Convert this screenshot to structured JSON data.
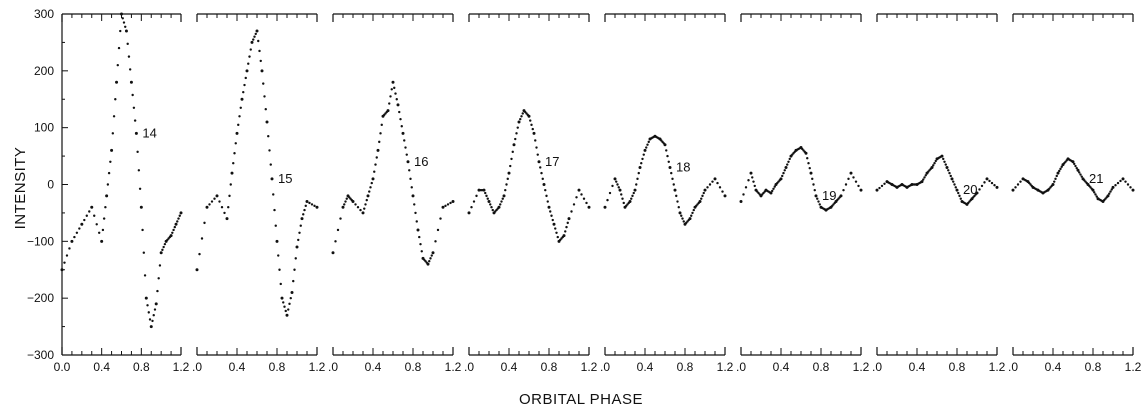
{
  "chart_data": {
    "type": "scatter",
    "xlabel": "ORBITAL PHASE",
    "ylabel": "INTENSITY",
    "ylim": [
      -300,
      300
    ],
    "xlim": [
      0.0,
      1.2
    ],
    "y_ticks": [
      "300",
      "200",
      "100",
      "0",
      "−100",
      "−200",
      "−300"
    ],
    "x_tick_labels_first": [
      "0.0",
      "0.4",
      "0.8",
      "1.2"
    ],
    "x_tick_labels_other": [
      ".0",
      "0.4",
      "0.8",
      "1.2"
    ],
    "grid": false,
    "panels": [
      {
        "name": "14",
        "x": [
          0.0,
          0.1,
          0.2,
          0.3,
          0.4,
          0.45,
          0.5,
          0.55,
          0.6,
          0.65,
          0.7,
          0.75,
          0.8,
          0.85,
          0.9,
          0.95,
          1.0,
          1.05,
          1.1,
          1.15,
          1.2
        ],
        "y": [
          -150,
          -100,
          -70,
          -40,
          -100,
          -20,
          60,
          180,
          300,
          270,
          180,
          90,
          -40,
          -200,
          -250,
          -210,
          -120,
          -100,
          -90,
          -70,
          -50
        ]
      },
      {
        "name": "15",
        "x": [
          0.0,
          0.1,
          0.2,
          0.3,
          0.35,
          0.4,
          0.45,
          0.5,
          0.55,
          0.6,
          0.65,
          0.7,
          0.75,
          0.8,
          0.85,
          0.9,
          0.95,
          1.0,
          1.05,
          1.1,
          1.2
        ],
        "y": [
          -150,
          -40,
          -20,
          -60,
          20,
          90,
          150,
          200,
          250,
          270,
          200,
          110,
          10,
          -100,
          -200,
          -230,
          -190,
          -110,
          -60,
          -30,
          -40
        ]
      },
      {
        "name": "16",
        "x": [
          0.0,
          0.1,
          0.15,
          0.2,
          0.3,
          0.35,
          0.4,
          0.45,
          0.5,
          0.55,
          0.6,
          0.65,
          0.7,
          0.75,
          0.8,
          0.85,
          0.9,
          0.95,
          1.0,
          1.1,
          1.2
        ],
        "y": [
          -120,
          -40,
          -20,
          -30,
          -50,
          -20,
          10,
          60,
          120,
          130,
          180,
          140,
          90,
          40,
          -20,
          -80,
          -130,
          -140,
          -120,
          -40,
          -30
        ]
      },
      {
        "name": "17",
        "x": [
          0.0,
          0.1,
          0.15,
          0.2,
          0.25,
          0.3,
          0.35,
          0.4,
          0.45,
          0.5,
          0.55,
          0.6,
          0.65,
          0.7,
          0.75,
          0.8,
          0.85,
          0.9,
          0.95,
          1.0,
          1.1,
          1.2
        ],
        "y": [
          -50,
          -10,
          -10,
          -30,
          -50,
          -40,
          -20,
          20,
          70,
          110,
          130,
          120,
          90,
          40,
          0,
          -40,
          -70,
          -100,
          -90,
          -60,
          -10,
          -40
        ]
      },
      {
        "name": "18",
        "x": [
          0.0,
          0.1,
          0.15,
          0.2,
          0.25,
          0.3,
          0.35,
          0.4,
          0.45,
          0.5,
          0.55,
          0.6,
          0.65,
          0.7,
          0.75,
          0.8,
          0.85,
          0.9,
          0.95,
          1.0,
          1.1,
          1.2
        ],
        "y": [
          -40,
          10,
          -10,
          -40,
          -30,
          -10,
          30,
          60,
          80,
          85,
          80,
          70,
          30,
          -10,
          -50,
          -70,
          -60,
          -40,
          -30,
          -10,
          10,
          -20
        ]
      },
      {
        "name": "19",
        "x": [
          0.0,
          0.1,
          0.15,
          0.2,
          0.25,
          0.3,
          0.35,
          0.4,
          0.45,
          0.5,
          0.55,
          0.6,
          0.65,
          0.7,
          0.75,
          0.8,
          0.85,
          0.9,
          0.95,
          1.0,
          1.1,
          1.2
        ],
        "y": [
          -30,
          20,
          -10,
          -20,
          -10,
          -15,
          0,
          10,
          30,
          50,
          60,
          65,
          55,
          20,
          -20,
          -40,
          -45,
          -40,
          -30,
          -20,
          20,
          -10
        ]
      },
      {
        "name": "20",
        "x": [
          0.0,
          0.1,
          0.15,
          0.2,
          0.25,
          0.3,
          0.35,
          0.4,
          0.45,
          0.5,
          0.55,
          0.6,
          0.65,
          0.7,
          0.75,
          0.8,
          0.85,
          0.9,
          0.95,
          1.0,
          1.1,
          1.2
        ],
        "y": [
          -10,
          5,
          0,
          -5,
          0,
          -5,
          0,
          0,
          5,
          20,
          30,
          45,
          50,
          30,
          10,
          -10,
          -30,
          -35,
          -25,
          -15,
          10,
          -5
        ]
      },
      {
        "name": "21",
        "x": [
          0.0,
          0.1,
          0.15,
          0.2,
          0.25,
          0.3,
          0.35,
          0.4,
          0.45,
          0.5,
          0.55,
          0.6,
          0.65,
          0.7,
          0.75,
          0.8,
          0.85,
          0.9,
          0.95,
          1.0,
          1.1,
          1.2
        ],
        "y": [
          -10,
          10,
          5,
          -5,
          -10,
          -15,
          -10,
          0,
          20,
          35,
          45,
          40,
          25,
          10,
          0,
          -10,
          -25,
          -30,
          -20,
          -5,
          10,
          -10
        ]
      }
    ]
  },
  "colors": {
    "ink": "#111111",
    "background": "#ffffff"
  }
}
